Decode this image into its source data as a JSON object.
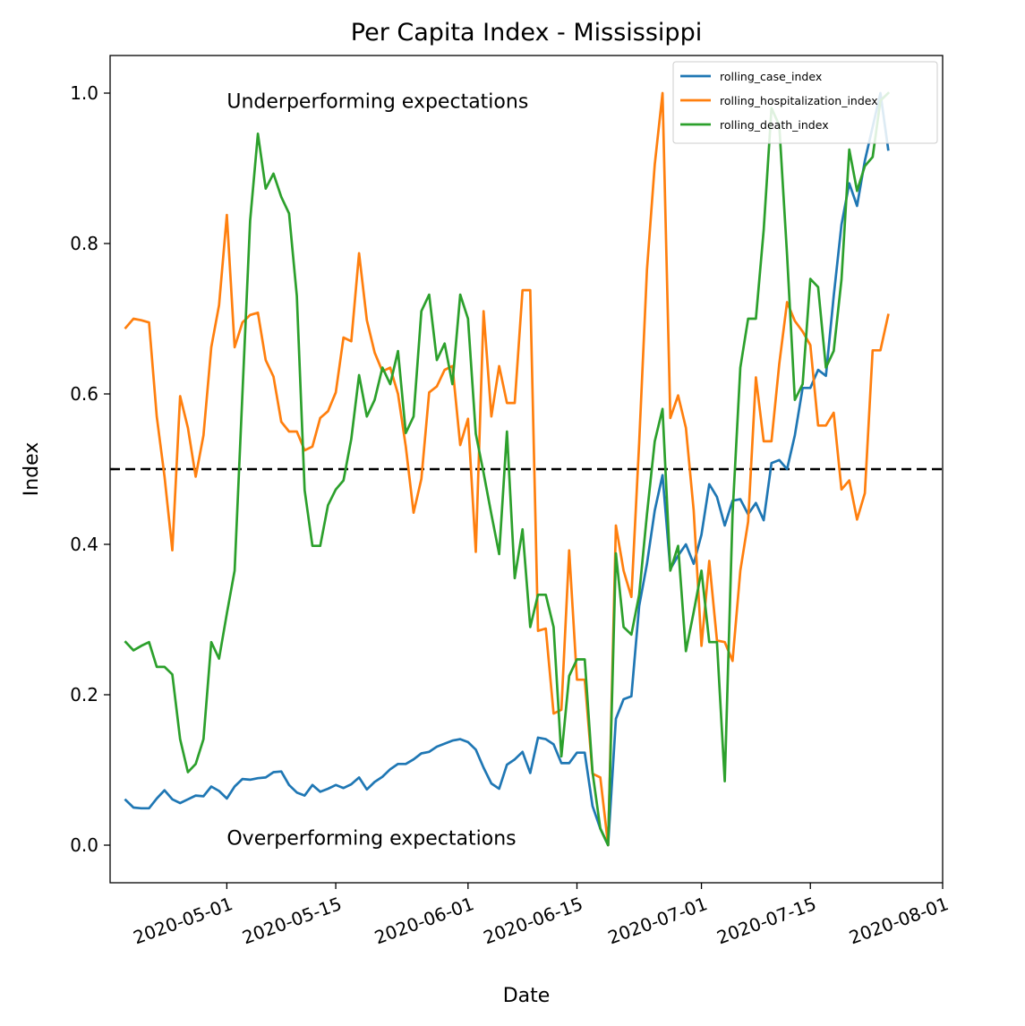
{
  "chart_data": {
    "type": "line",
    "title": "Per Capita Index - Mississippi",
    "xlabel": "Date",
    "ylabel": "Index",
    "x_start": "2020-04-18",
    "xlim": [
      "2020-04-16",
      "2020-08-01"
    ],
    "ylim": [
      -0.05,
      1.05
    ],
    "x_ticks": [
      "2020-05-01",
      "2020-05-15",
      "2020-06-01",
      "2020-06-15",
      "2020-07-01",
      "2020-07-15",
      "2020-08-01"
    ],
    "y_ticks": [
      0.0,
      0.2,
      0.4,
      0.6,
      0.8,
      1.0
    ],
    "y_tick_labels": [
      "0.0",
      "0.2",
      "0.4",
      "0.6",
      "0.8",
      "1.0"
    ],
    "reference_line": {
      "y": 0.5,
      "style": "dashed",
      "color": "#000000"
    },
    "annotations": [
      {
        "text": "Underperforming expectations",
        "x": "2020-05-01",
        "y": 0.99
      },
      {
        "text": "Overperforming expectations",
        "x": "2020-05-01",
        "y": 0.01
      }
    ],
    "legend": {
      "position": "top-right"
    },
    "grid": false,
    "series": [
      {
        "name": "rolling_case_index",
        "color": "#1f77b4",
        "values": [
          0.06,
          0.05,
          0.049,
          0.049,
          0.062,
          0.073,
          0.061,
          0.056,
          0.061,
          0.066,
          0.065,
          0.078,
          0.072,
          0.062,
          0.078,
          0.088,
          0.087,
          0.089,
          0.09,
          0.097,
          0.098,
          0.08,
          0.07,
          0.066,
          0.08,
          0.071,
          0.075,
          0.08,
          0.076,
          0.081,
          0.09,
          0.074,
          0.084,
          0.091,
          0.101,
          0.108,
          0.108,
          0.114,
          0.122,
          0.124,
          0.131,
          0.135,
          0.139,
          0.141,
          0.137,
          0.127,
          0.103,
          0.082,
          0.075,
          0.107,
          0.114,
          0.124,
          0.096,
          0.143,
          0.141,
          0.134,
          0.109,
          0.109,
          0.123,
          0.123,
          0.052,
          0.022,
          0.0,
          0.168,
          0.194,
          0.198,
          0.318,
          0.374,
          0.445,
          0.492,
          0.367,
          0.385,
          0.4,
          0.374,
          0.413,
          0.48,
          0.463,
          0.425,
          0.458,
          0.46,
          0.44,
          0.455,
          0.432,
          0.508,
          0.512,
          0.5,
          0.545,
          0.608,
          0.608,
          0.632,
          0.624,
          0.73,
          0.825,
          0.88,
          0.85,
          0.91,
          0.955,
          1.0,
          0.925
        ]
      },
      {
        "name": "rolling_hospitalization_index",
        "color": "#ff7f0e",
        "values": [
          0.688,
          0.7,
          0.698,
          0.695,
          0.57,
          0.49,
          0.392,
          0.597,
          0.555,
          0.49,
          0.545,
          0.662,
          0.718,
          0.838,
          0.662,
          0.695,
          0.705,
          0.708,
          0.645,
          0.623,
          0.563,
          0.55,
          0.55,
          0.525,
          0.53,
          0.568,
          0.577,
          0.602,
          0.675,
          0.67,
          0.787,
          0.698,
          0.655,
          0.63,
          0.635,
          0.6,
          0.53,
          0.442,
          0.487,
          0.602,
          0.61,
          0.632,
          0.637,
          0.532,
          0.567,
          0.39,
          0.71,
          0.57,
          0.637,
          0.588,
          0.588,
          0.738,
          0.738,
          0.285,
          0.288,
          0.175,
          0.18,
          0.392,
          0.22,
          0.22,
          0.095,
          0.09,
          0.0,
          0.425,
          0.365,
          0.33,
          0.535,
          0.765,
          0.905,
          1.0,
          0.568,
          0.598,
          0.555,
          0.445,
          0.265,
          0.378,
          0.272,
          0.27,
          0.245,
          0.365,
          0.43,
          0.622,
          0.537,
          0.537,
          0.64,
          0.722,
          0.697,
          0.683,
          0.665,
          0.558,
          0.558,
          0.575,
          0.473,
          0.485,
          0.433,
          0.468,
          0.658,
          0.658,
          0.705
        ]
      },
      {
        "name": "rolling_death_index",
        "color": "#2ca02c",
        "values": [
          0.27,
          0.259,
          0.265,
          0.27,
          0.237,
          0.237,
          0.227,
          0.141,
          0.097,
          0.108,
          0.141,
          0.27,
          0.248,
          0.308,
          0.365,
          0.6,
          0.83,
          0.946,
          0.873,
          0.893,
          0.862,
          0.84,
          0.73,
          0.472,
          0.398,
          0.398,
          0.452,
          0.473,
          0.485,
          0.54,
          0.625,
          0.57,
          0.592,
          0.635,
          0.613,
          0.657,
          0.548,
          0.57,
          0.71,
          0.732,
          0.645,
          0.667,
          0.613,
          0.732,
          0.7,
          0.547,
          0.495,
          0.44,
          0.387,
          0.55,
          0.355,
          0.42,
          0.29,
          0.333,
          0.333,
          0.29,
          0.118,
          0.225,
          0.247,
          0.247,
          0.097,
          0.022,
          0.0,
          0.388,
          0.29,
          0.28,
          0.333,
          0.44,
          0.537,
          0.58,
          0.365,
          0.398,
          0.258,
          0.31,
          0.365,
          0.27,
          0.27,
          0.085,
          0.44,
          0.635,
          0.7,
          0.7,
          0.818,
          0.98,
          0.957,
          0.785,
          0.592,
          0.613,
          0.753,
          0.742,
          0.635,
          0.657,
          0.752,
          0.925,
          0.87,
          0.903,
          0.915,
          0.99,
          1.0
        ]
      }
    ]
  }
}
